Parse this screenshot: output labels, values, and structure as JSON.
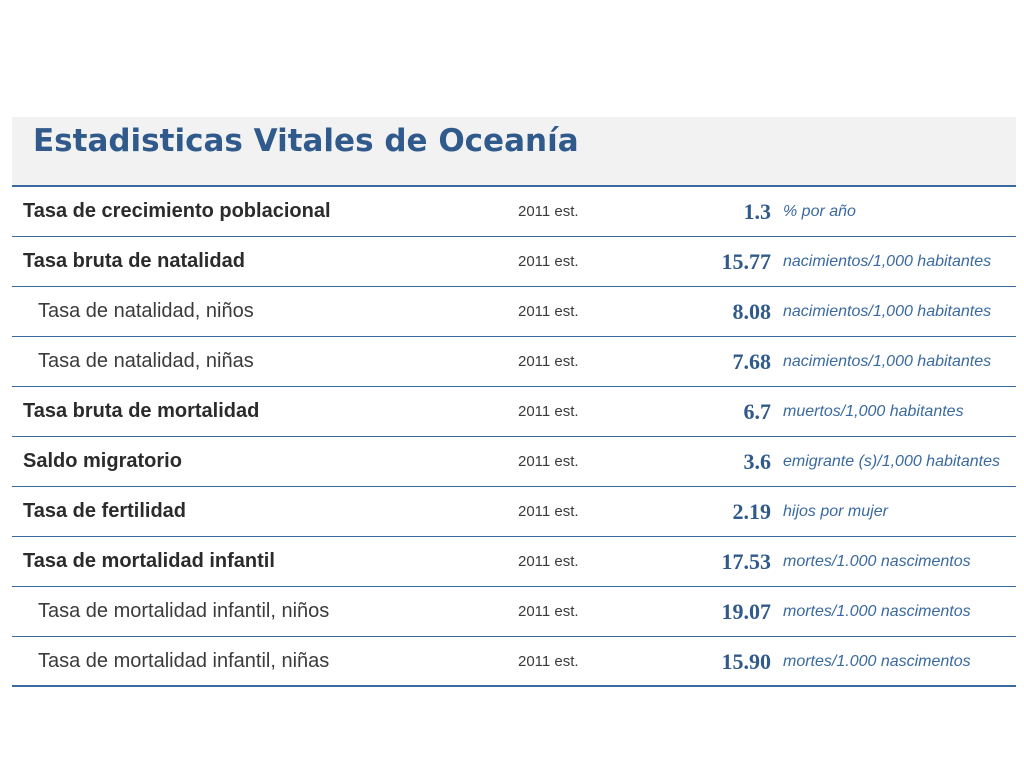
{
  "title": "Estadisticas Vitales de Oceanía",
  "rows": [
    {
      "label": "Tasa de crecimiento poblacional",
      "year": "2011 est.",
      "value": "1.3",
      "unit": "% por año",
      "kind": "main"
    },
    {
      "label": "Tasa bruta de natalidad",
      "year": "2011 est.",
      "value": "15.77",
      "unit": "nacimientos/1,000 habitantes",
      "kind": "main"
    },
    {
      "label": "Tasa de natalidad, niños",
      "year": "2011 est.",
      "value": "8.08",
      "unit": "nacimientos/1,000 habitantes",
      "kind": "sub"
    },
    {
      "label": "Tasa de natalidad, niñas",
      "year": "2011 est.",
      "value": "7.68",
      "unit": "nacimientos/1,000 habitantes",
      "kind": "sub"
    },
    {
      "label": "Tasa bruta de mortalidad",
      "year": "2011 est.",
      "value": "6.7",
      "unit": "muertos/1,000 habitantes",
      "kind": "main"
    },
    {
      "label": "Saldo migratorio",
      "year": "2011 est.",
      "value": "3.6",
      "unit": "emigrante (s)/1,000 habitantes",
      "kind": "main"
    },
    {
      "label": "Tasa de fertilidad",
      "year": "2011 est.",
      "value": "2.19",
      "unit": "hijos por mujer",
      "kind": "main"
    },
    {
      "label": "Tasa de mortalidad infantil",
      "year": "2011 est.",
      "value": "17.53",
      "unit": "mortes/1.000 nascimentos",
      "kind": "main"
    },
    {
      "label": "Tasa de mortalidad infantil, niños",
      "year": "2011 est.",
      "value": "19.07",
      "unit": "mortes/1.000 nascimentos",
      "kind": "sub"
    },
    {
      "label": "Tasa de mortalidad infantil, niñas",
      "year": "2011 est.",
      "value": "15.90",
      "unit": "mortes/1.000 nascimentos",
      "kind": "sub"
    }
  ]
}
